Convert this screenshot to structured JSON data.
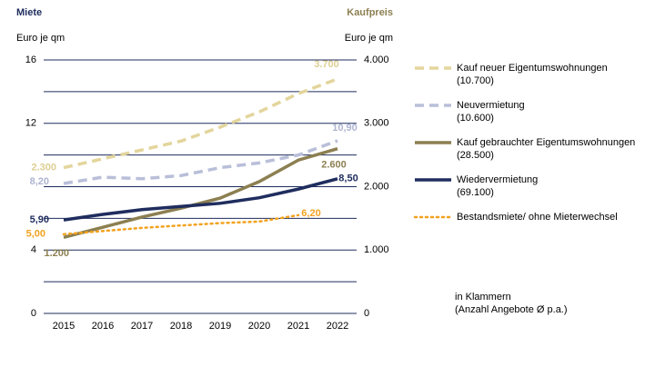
{
  "chart_data": {
    "type": "line",
    "left_title": "Miete",
    "right_title": "Kaufpreis",
    "ylabel": "Euro je qm",
    "y2label": "Euro je qm",
    "categories": [
      "2015",
      "2016",
      "2017",
      "2018",
      "2019",
      "2020",
      "2021",
      "2022"
    ],
    "ylim": [
      0,
      16
    ],
    "yticks": [
      0,
      4,
      12,
      16
    ],
    "y2lim": [
      0,
      4000
    ],
    "y2ticks": [
      0,
      {
        "value": 1000,
        "label": "1.000"
      },
      {
        "value": 2000,
        "label": "2.000"
      },
      {
        "value": 3000,
        "label": "3.000"
      },
      {
        "value": 4000,
        "label": "4.000"
      }
    ],
    "grid": true,
    "grid_step": 2,
    "series": [
      {
        "name": "Kauf neuer Eigentumswohnungen",
        "count": "(10.700)",
        "color": "#e3d59c",
        "label_color": "#ddcf93",
        "dash": "dashed",
        "axis": "y2",
        "values": [
          2300,
          2440,
          2580,
          2720,
          2940,
          3180,
          3470,
          3700
        ],
        "value_labels": [
          "2.300",
          null,
          null,
          null,
          null,
          null,
          null,
          "3.700"
        ]
      },
      {
        "name": "Neuvermietung",
        "count": "(10.600)",
        "color": "#b9bfd9",
        "label_color": "#aeb4d2",
        "dash": "dashed",
        "axis": "y",
        "values": [
          8.2,
          8.6,
          8.5,
          8.7,
          9.2,
          9.5,
          10.0,
          10.9
        ],
        "value_labels": [
          "8,20",
          null,
          null,
          null,
          null,
          null,
          null,
          "10,90"
        ]
      },
      {
        "name": "Kauf gebrauchter Eigentumswohnungen",
        "count": "(28.500)",
        "color": "#8c7f51",
        "label_color": "#8c7f51",
        "dash": "solid",
        "axis": "y2",
        "values": [
          1200,
          1360,
          1520,
          1660,
          1820,
          2080,
          2420,
          2600
        ],
        "value_labels": [
          "1.200",
          null,
          null,
          null,
          null,
          null,
          null,
          "2.600"
        ]
      },
      {
        "name": "Wiedervermietung",
        "count": "(69.100)",
        "color": "#1f2d5e",
        "label_color": "#1f2d5e",
        "dash": "solid",
        "axis": "y",
        "values": [
          5.9,
          6.25,
          6.55,
          6.75,
          6.95,
          7.3,
          7.85,
          8.5
        ],
        "value_labels": [
          "5,90",
          null,
          null,
          null,
          null,
          null,
          null,
          "8,50"
        ]
      },
      {
        "name": "Bestandsmiete/ ohne Mieterwechsel",
        "color": "#f2a21f",
        "label_color": "#f2a21f",
        "dash": "dotted",
        "axis": "y",
        "values": [
          5.0,
          5.2,
          5.4,
          5.55,
          5.7,
          5.8,
          6.2,
          null
        ],
        "value_labels": [
          "5,00",
          null,
          null,
          null,
          null,
          null,
          "6,20",
          null
        ]
      }
    ],
    "footnote": [
      "in Klammern",
      "(Anzahl Angebote Ø p.a.)"
    ]
  }
}
